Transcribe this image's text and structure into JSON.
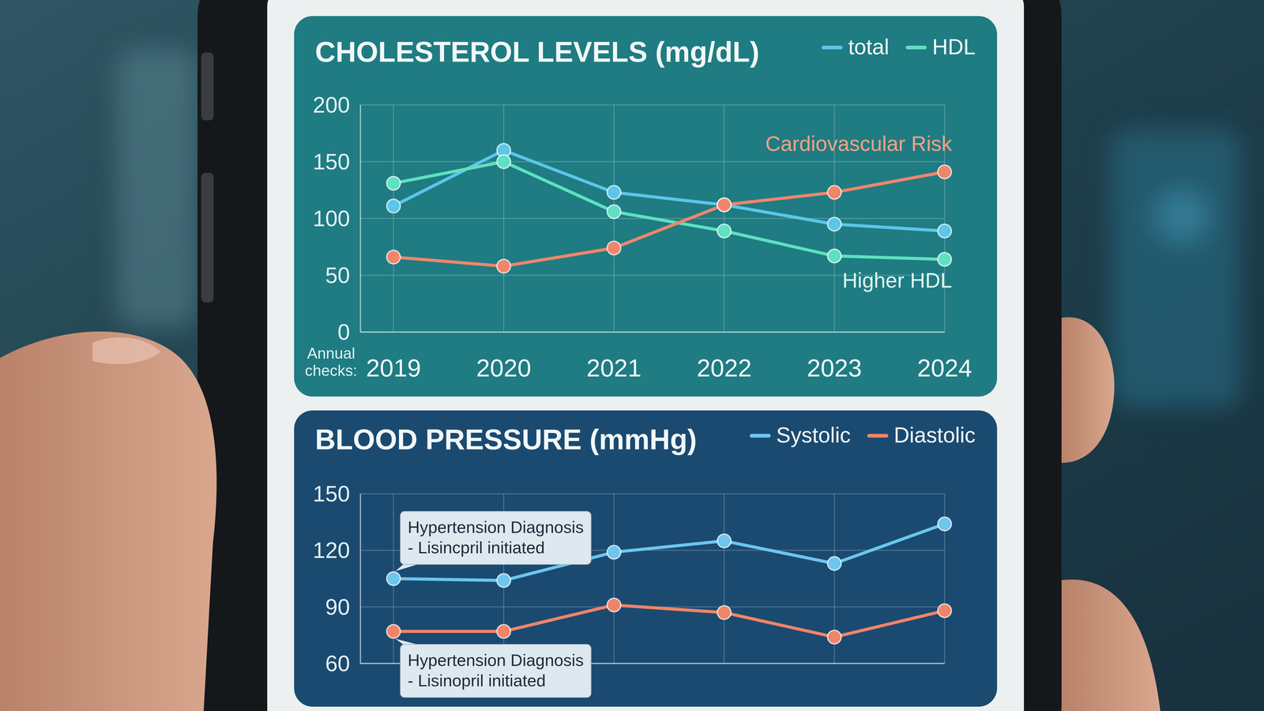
{
  "chart_data": [
    {
      "type": "line",
      "title": "CHOLESTEROL LEVELS (mg/dL)",
      "xlabel": "Annual checks:",
      "categories": [
        "2019",
        "2020",
        "2021",
        "2022",
        "2023",
        "2024"
      ],
      "series": [
        {
          "name": "total",
          "color": "#5cc6ea",
          "values": [
            111,
            160,
            123,
            112,
            95,
            89
          ]
        },
        {
          "name": "HDL",
          "color": "#5fe0c2",
          "values": [
            131,
            150,
            106,
            89,
            67,
            64
          ],
          "annotation": "Higher HDL"
        },
        {
          "color": "#f0856c",
          "values": [
            66,
            58,
            74,
            112,
            123,
            141
          ],
          "annotation": "Cardiovascular Risk"
        }
      ],
      "ylim": [
        0,
        200
      ],
      "yticks": [
        0,
        50,
        100,
        150,
        200
      ],
      "grid": true,
      "legend": "top-right",
      "marker": "circle"
    },
    {
      "type": "line",
      "title": "BLOOD PRESSURE (mmHg)",
      "x": [
        2019,
        2020,
        2021,
        2022,
        2023,
        2024
      ],
      "xlim": [
        2018.7,
        2024
      ],
      "xticks": [
        2019,
        2020,
        2021,
        2022,
        2023,
        2024
      ],
      "series": [
        {
          "name": "Systolic",
          "color": "#6cc6ee",
          "values": [
            105,
            104,
            119,
            125,
            113,
            134
          ],
          "annotation": [
            "Hypertension Diagnosis",
            "- Lisincpril initiated"
          ]
        },
        {
          "name": "Diastolic",
          "color": "#f08468",
          "values": [
            77,
            77,
            91,
            87,
            74,
            88
          ],
          "annotation": [
            "Hypertension Diagnosis",
            "- Lisinopril initiated"
          ]
        }
      ],
      "ylim": [
        60,
        150
      ],
      "yticks": [
        60,
        90,
        120,
        150
      ],
      "grid": true,
      "legend": "top-right",
      "marker": "circle",
      "tick_labels": "y"
    }
  ]
}
